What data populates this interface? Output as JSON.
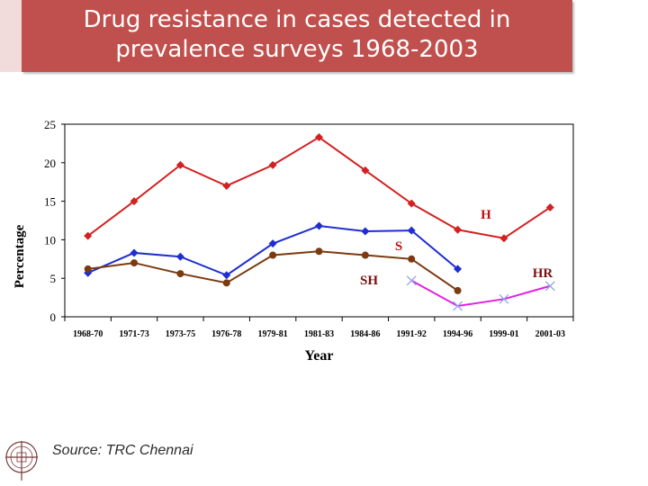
{
  "slide": {
    "title_line1": "Drug resistance in cases detected in",
    "title_line2": "prevalence surveys 1968-2003",
    "source": "Source: TRC Chennai",
    "title_color": "#c0504d"
  },
  "chart_data": {
    "type": "line",
    "categories": [
      "1968-70",
      "1971-73",
      "1973-75",
      "1976-78",
      "1979-81",
      "1981-83",
      "1984-86",
      "1991-92",
      "1994-96",
      "1999-01",
      "2001-03"
    ],
    "xlabel": "Year",
    "ylabel": "Percentage",
    "ylim": [
      0,
      25
    ],
    "yticks": [
      0,
      5,
      10,
      15,
      20,
      25
    ],
    "grid": false,
    "series": [
      {
        "name": "H",
        "color": "#d42020",
        "marker": "diamond",
        "values": [
          10.5,
          15,
          19.7,
          17,
          19.7,
          23.3,
          19,
          14.7,
          11.3,
          10.2,
          14.2
        ]
      },
      {
        "name": "S",
        "color": "#1f2ecf",
        "marker": "diamond",
        "values": [
          5.7,
          8.3,
          7.8,
          5.4,
          9.5,
          11.8,
          11.1,
          11.2,
          6.2,
          null,
          null
        ]
      },
      {
        "name": "SH",
        "color": "#7b3a10",
        "marker": "circle",
        "values": [
          6.2,
          7,
          5.6,
          4.4,
          8,
          8.5,
          8,
          7.5,
          3.4,
          null,
          null
        ]
      },
      {
        "name": "HR",
        "color": "#e020e0",
        "marker": "x",
        "values": [
          null,
          null,
          null,
          null,
          null,
          null,
          null,
          4.7,
          1.4,
          2.3,
          4
        ]
      }
    ]
  }
}
